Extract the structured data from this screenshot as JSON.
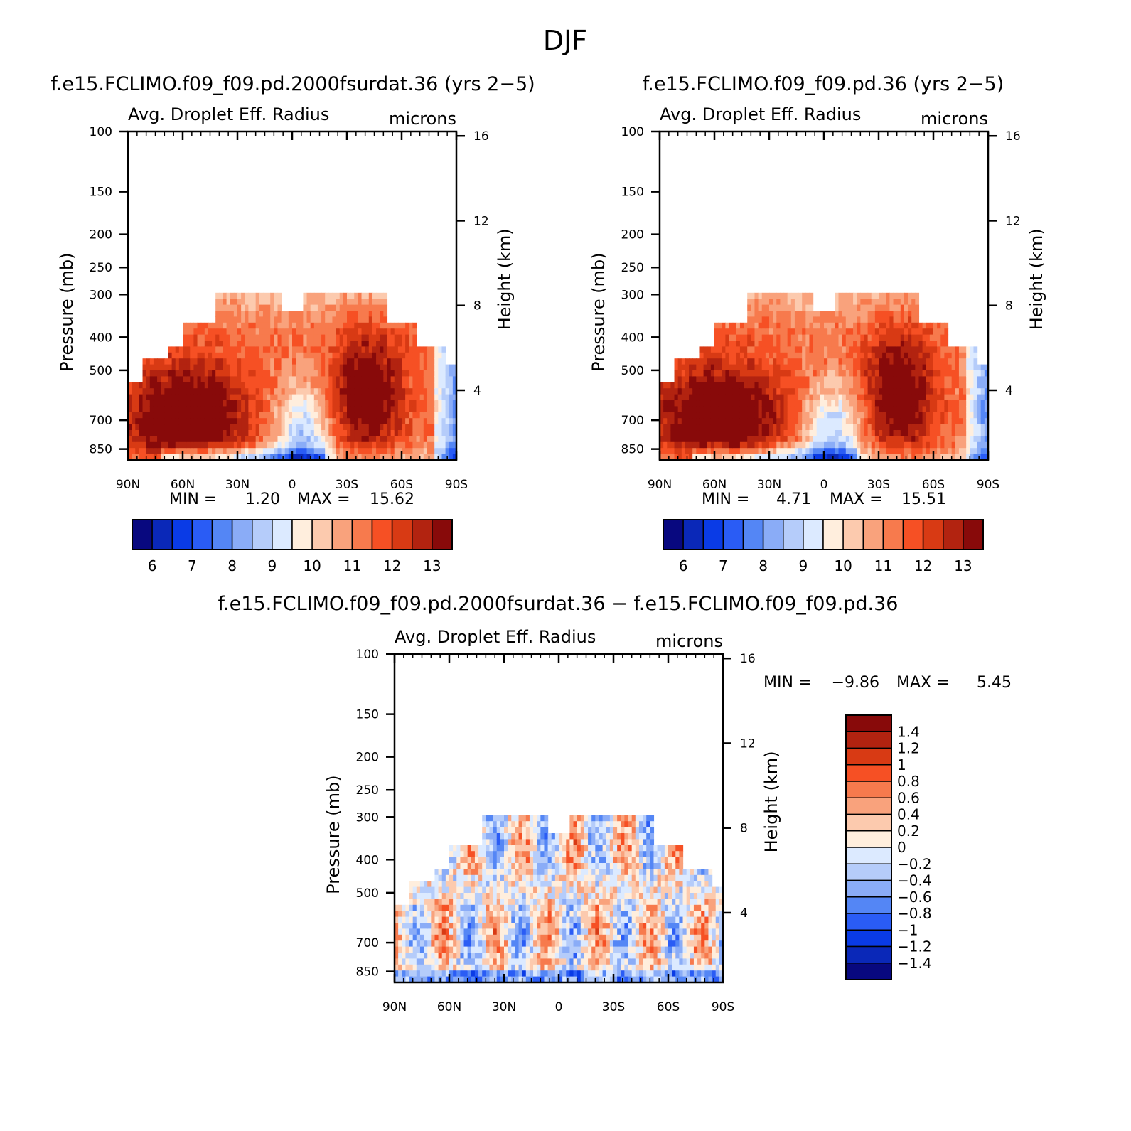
{
  "page_title": "DJF",
  "palette": {
    "abs": [
      "#08087f",
      "#0a28b8",
      "#0a3be6",
      "#2a5cf5",
      "#5486f5",
      "#8aacf7",
      "#b5ccfa",
      "#dceaff",
      "#ffeedd",
      "#fccaae",
      "#f9a27c",
      "#f77a4d",
      "#f65024",
      "#d83a14",
      "#b22310",
      "#880a0a"
    ],
    "diff": [
      "#880a0a",
      "#b22310",
      "#d83a14",
      "#f65024",
      "#f77a4d",
      "#f9a27c",
      "#fccaae",
      "#ffeedd",
      "#dceaff",
      "#b5ccfa",
      "#8aacf7",
      "#5486f5",
      "#2a5cf5",
      "#0a3be6",
      "#0a28b8",
      "#08087f"
    ]
  },
  "chart_data": [
    {
      "type": "heatmap",
      "title": "f.e15.FCLIMO.f09_f09.pd.2000fsurdat.36 (yrs 2−5)",
      "subtitle": "Avg. Droplet Eff. Radius",
      "units": "microns",
      "xlabel": "",
      "ylabel": "Pressure (mb)",
      "ylabel_right": "Height (km)",
      "x_ticks": [
        "90N",
        "60N",
        "30N",
        "0",
        "30S",
        "60S",
        "90S"
      ],
      "y_ticks": [
        "100",
        "150",
        "200",
        "250",
        "300",
        "400",
        "500",
        "700",
        "850"
      ],
      "y_right_ticks": [
        "16",
        "12",
        "8",
        "4"
      ],
      "min_label": "MIN =",
      "min_value": "1.20",
      "max_label": "MAX =",
      "max_value": "15.62",
      "colorbar_labels": [
        "6",
        "7",
        "8",
        "9",
        "10",
        "11",
        "12",
        "13"
      ],
      "colorbar_orientation": "horizontal"
    },
    {
      "type": "heatmap",
      "title": "f.e15.FCLIMO.f09_f09.pd.36 (yrs 2−5)",
      "subtitle": "Avg. Droplet Eff. Radius",
      "units": "microns",
      "xlabel": "",
      "ylabel": "Pressure (mb)",
      "ylabel_right": "Height (km)",
      "x_ticks": [
        "90N",
        "60N",
        "30N",
        "0",
        "30S",
        "60S",
        "90S"
      ],
      "y_ticks": [
        "100",
        "150",
        "200",
        "250",
        "300",
        "400",
        "500",
        "700",
        "850"
      ],
      "y_right_ticks": [
        "16",
        "12",
        "8",
        "4"
      ],
      "min_label": "MIN =",
      "min_value": "4.71",
      "max_label": "MAX =",
      "max_value": "15.51",
      "colorbar_labels": [
        "6",
        "7",
        "8",
        "9",
        "10",
        "11",
        "12",
        "13"
      ],
      "colorbar_orientation": "horizontal"
    },
    {
      "type": "heatmap",
      "title": "f.e15.FCLIMO.f09_f09.pd.2000fsurdat.36 − f.e15.FCLIMO.f09_f09.pd.36",
      "subtitle": "Avg. Droplet Eff. Radius",
      "units": "microns",
      "xlabel": "",
      "ylabel": "Pressure (mb)",
      "ylabel_right": "Height (km)",
      "x_ticks": [
        "90N",
        "60N",
        "30N",
        "0",
        "30S",
        "60S",
        "90S"
      ],
      "y_ticks": [
        "100",
        "150",
        "200",
        "250",
        "300",
        "400",
        "500",
        "700",
        "850"
      ],
      "y_right_ticks": [
        "16",
        "12",
        "8",
        "4"
      ],
      "min_label": "MIN =",
      "min_value": "−9.86",
      "max_label": "MAX =",
      "max_value": "5.45",
      "colorbar_labels": [
        "1.4",
        "1.2",
        "1",
        "0.8",
        "0.6",
        "0.4",
        "0.2",
        "0",
        "−0.2",
        "−0.4",
        "−0.6",
        "−0.8",
        "−1",
        "−1.2",
        "−1.4"
      ],
      "colorbar_orientation": "vertical"
    }
  ]
}
